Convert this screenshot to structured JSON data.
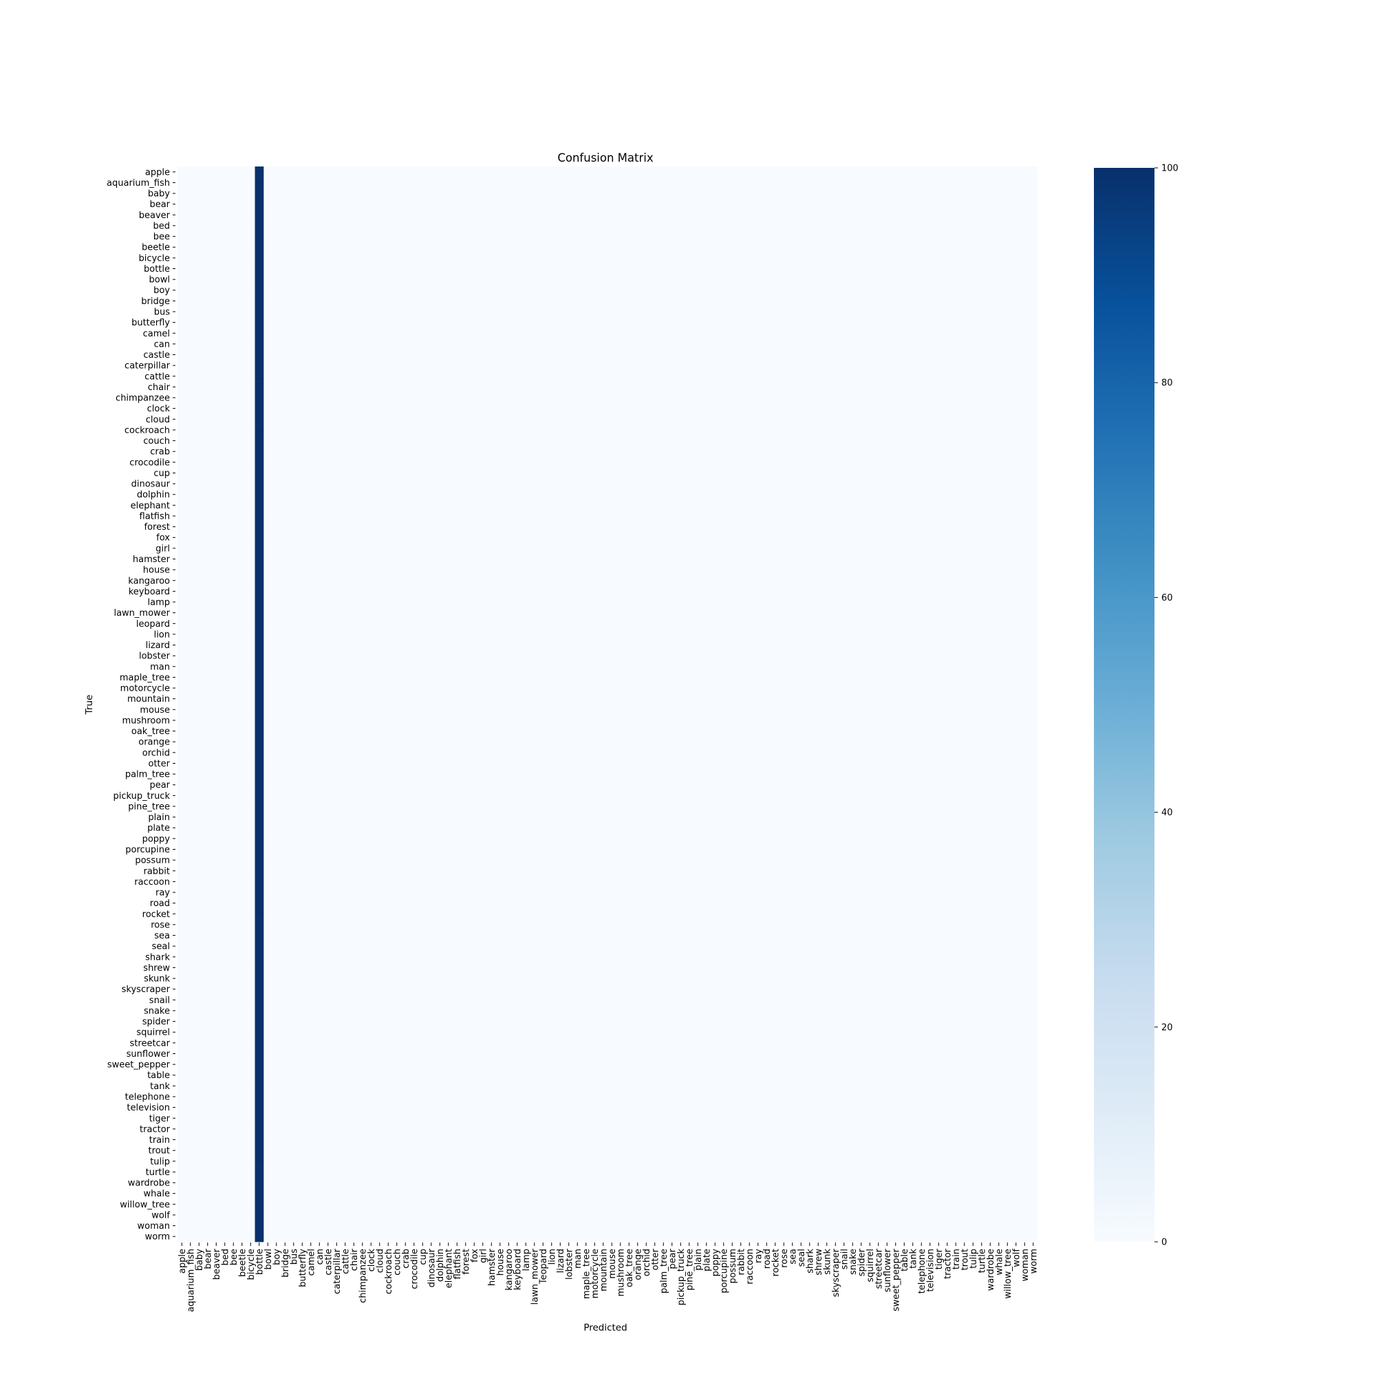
{
  "chart_data": {
    "type": "heatmap",
    "title": "Confusion Matrix",
    "xlabel": "Predicted",
    "ylabel": "True",
    "categories": [
      "apple",
      "aquarium_fish",
      "baby",
      "bear",
      "beaver",
      "bed",
      "bee",
      "beetle",
      "bicycle",
      "bottle",
      "bowl",
      "boy",
      "bridge",
      "bus",
      "butterfly",
      "camel",
      "can",
      "castle",
      "caterpillar",
      "cattle",
      "chair",
      "chimpanzee",
      "clock",
      "cloud",
      "cockroach",
      "couch",
      "crab",
      "crocodile",
      "cup",
      "dinosaur",
      "dolphin",
      "elephant",
      "flatfish",
      "forest",
      "fox",
      "girl",
      "hamster",
      "house",
      "kangaroo",
      "keyboard",
      "lamp",
      "lawn_mower",
      "leopard",
      "lion",
      "lizard",
      "lobster",
      "man",
      "maple_tree",
      "motorcycle",
      "mountain",
      "mouse",
      "mushroom",
      "oak_tree",
      "orange",
      "orchid",
      "otter",
      "palm_tree",
      "pear",
      "pickup_truck",
      "pine_tree",
      "plain",
      "plate",
      "poppy",
      "porcupine",
      "possum",
      "rabbit",
      "raccoon",
      "ray",
      "road",
      "rocket",
      "rose",
      "sea",
      "seal",
      "shark",
      "shrew",
      "skunk",
      "skyscraper",
      "snail",
      "snake",
      "spider",
      "squirrel",
      "streetcar",
      "sunflower",
      "sweet_pepper",
      "table",
      "tank",
      "telephone",
      "television",
      "tiger",
      "tractor",
      "train",
      "trout",
      "tulip",
      "turtle",
      "wardrobe",
      "whale",
      "willow_tree",
      "wolf",
      "woman",
      "worm"
    ],
    "predicted_column_for_all_rows": "bottle",
    "cell_value_in_that_column": 100,
    "other_cells_value": 0,
    "colorbar": {
      "min": 0,
      "max": 100,
      "ticks": [
        0,
        20,
        40,
        60,
        80,
        100
      ],
      "colormap": "Blues"
    },
    "colors": {
      "low": "#f7fbff",
      "high": "#08306b"
    },
    "grid": false
  }
}
